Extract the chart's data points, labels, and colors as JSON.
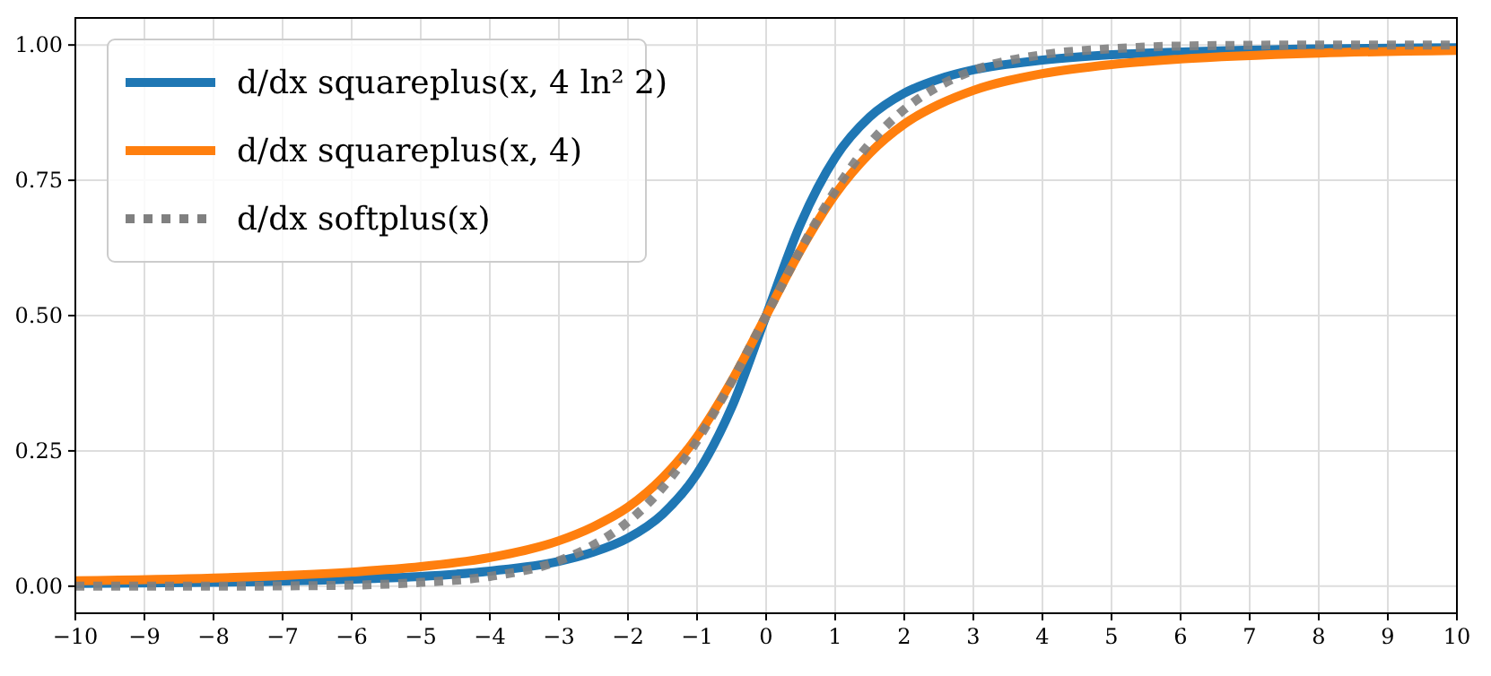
{
  "chart_data": {
    "type": "line",
    "x": [
      -10,
      -8,
      -6,
      -5,
      -4,
      -3,
      -2.5,
      -2,
      -1.5,
      -1,
      -0.5,
      0,
      0.5,
      1,
      1.5,
      2,
      2.5,
      3,
      4,
      5,
      6,
      8,
      10
    ],
    "series": [
      {
        "name": "d/dx squareplus(x, 4 ln² 2)",
        "color": "#1f77b4",
        "line_style": "solid",
        "values": [
          0.005,
          0.007,
          0.013,
          0.018,
          0.028,
          0.046,
          0.063,
          0.089,
          0.133,
          0.208,
          0.33,
          0.5,
          0.67,
          0.792,
          0.867,
          0.911,
          0.937,
          0.954,
          0.972,
          0.982,
          0.987,
          0.993,
          0.995
        ]
      },
      {
        "name": "d/dx squareplus(x, 4)",
        "color": "#ff7f0e",
        "line_style": "solid",
        "values": [
          0.01,
          0.015,
          0.026,
          0.036,
          0.053,
          0.084,
          0.11,
          0.146,
          0.2,
          0.276,
          0.379,
          0.5,
          0.621,
          0.724,
          0.8,
          0.854,
          0.89,
          0.916,
          0.947,
          0.964,
          0.974,
          0.985,
          0.99
        ]
      },
      {
        "name": "d/dx softplus(x)",
        "color": "#808080",
        "line_style": "dotted",
        "values": [
          0.0,
          0.0,
          0.002,
          0.007,
          0.018,
          0.047,
          0.076,
          0.119,
          0.182,
          0.269,
          0.378,
          0.5,
          0.622,
          0.731,
          0.818,
          0.881,
          0.924,
          0.953,
          0.982,
          0.993,
          0.998,
          1.0,
          1.0
        ]
      }
    ],
    "xlim": [
      -10,
      10
    ],
    "xticks": [
      -10,
      -9,
      -8,
      -7,
      -6,
      -5,
      -4,
      -3,
      -2,
      -1,
      0,
      1,
      2,
      3,
      4,
      5,
      6,
      7,
      8,
      9,
      10
    ],
    "ylim": [
      -0.05,
      1.05
    ],
    "yticks": [
      {
        "value": 0,
        "label": "0.00"
      },
      {
        "value": 0.25,
        "label": "0.25"
      },
      {
        "value": 0.5,
        "label": "0.50"
      },
      {
        "value": 0.75,
        "label": "0.75"
      },
      {
        "value": 1,
        "label": "1.00"
      }
    ],
    "grid": true,
    "legend": "top left"
  }
}
